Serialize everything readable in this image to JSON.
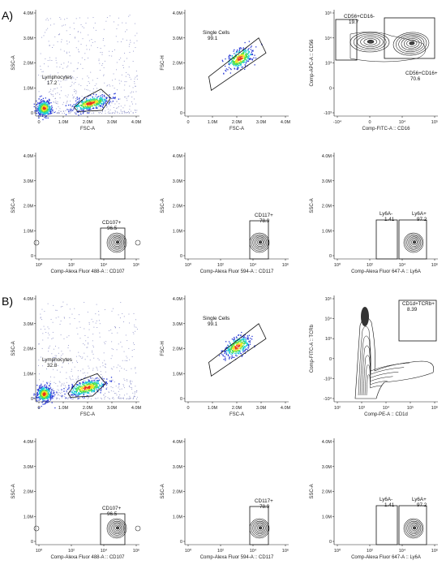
{
  "panel_labels": [
    "A)",
    "B)"
  ],
  "colors": {
    "low": "#2b3cd8",
    "mid": "#18c9d6",
    "mid2": "#4ce04c",
    "high": "#f2e322",
    "peak": "#e8321c",
    "contour": "#111111",
    "scatter_dots": "#8b8fc7"
  },
  "chart_data": [
    {
      "id": "A1",
      "type": "scatter",
      "xlabel": "FSC-A",
      "ylabel": "SSC-A",
      "xscale": "linear",
      "yscale": "linear",
      "xticks": [
        "0",
        "1.0M",
        "2.0M",
        "3.0M",
        "4.0M"
      ],
      "yticks": [
        "0",
        "1.0M",
        "2.0M",
        "3.0M",
        "4.0M"
      ],
      "xlim": [
        0,
        4.3
      ],
      "ylim": [
        0,
        4.3
      ],
      "gates": [
        {
          "name": "Lymphocytes",
          "value": "17.2",
          "x": [
            1.45,
            2.9
          ],
          "y": [
            0.1,
            0.95
          ]
        }
      ],
      "populations": [
        {
          "x": 2.1,
          "y": 0.4,
          "sx": 0.4,
          "sy": 0.12
        },
        {
          "x": 0.2,
          "y": 0.2,
          "sx": 0.15,
          "sy": 0.15
        }
      ],
      "style": "pseudocolor"
    },
    {
      "id": "A2",
      "type": "scatter",
      "xlabel": "FSC-A",
      "ylabel": "FSC-H",
      "xscale": "linear",
      "yscale": "linear",
      "xticks": [
        "0",
        "1.0M",
        "2.0M",
        "3.0M",
        "4.0M"
      ],
      "yticks": [
        "0",
        "1.0M",
        "2.0M",
        "3.0M",
        "4.0M"
      ],
      "xlim": [
        0,
        4.3
      ],
      "ylim": [
        0,
        4.3
      ],
      "gates": [
        {
          "name": "Single Cells",
          "value": "99.1"
        }
      ],
      "populations": [
        {
          "x": 2.1,
          "y": 2.2,
          "sx": 0.3,
          "sy": 0.25
        }
      ],
      "style": "pseudocolor"
    },
    {
      "id": "A3",
      "type": "contour",
      "xlabel": "Comp-FITC-A :: CD16",
      "ylabel": "Comp-APC-A :: CD56",
      "xscale": "log",
      "yscale": "log",
      "xticks": [
        "-10⁴",
        "0",
        "10⁴",
        "10⁵"
      ],
      "yticks": [
        "10⁵",
        "10⁴",
        "10³",
        "0",
        "-10³"
      ],
      "gates": [
        {
          "name": "CD56+CD16-",
          "value": "19.7"
        },
        {
          "name": "CD56+CD16+",
          "value": "70.6"
        }
      ],
      "style": "contour"
    },
    {
      "id": "A4",
      "type": "contour",
      "xlabel": "Comp-Alexa Fluor 488-A :: CD107",
      "ylabel": "SSC-A",
      "xscale": "log",
      "yscale": "linear",
      "xticks": [
        "10⁰",
        "10²",
        "10⁴",
        "10⁶"
      ],
      "yticks": [
        "0",
        "1.0M",
        "2.0M",
        "3.0M",
        "4.0M"
      ],
      "gates": [
        {
          "name": "CD107+",
          "value": "96.5"
        }
      ],
      "style": "contour"
    },
    {
      "id": "A5",
      "type": "contour",
      "xlabel": "Comp-Alexa Fluor 594-A :: CD117",
      "ylabel": "SSC-A",
      "xscale": "log",
      "yscale": "linear",
      "xticks": [
        "10⁰",
        "10²",
        "10⁴",
        "10⁶"
      ],
      "yticks": [
        "0",
        "1.0M",
        "2.0M",
        "3.0M",
        "4.0M"
      ],
      "gates": [
        {
          "name": "CD117+",
          "value": "78.9"
        }
      ],
      "style": "contour"
    },
    {
      "id": "A6",
      "type": "contour",
      "xlabel": "Comp-Alexa Fluor 647-A :: Ly6A",
      "ylabel": "SSC-A",
      "xscale": "log",
      "yscale": "linear",
      "xticks": [
        "10⁰",
        "10²",
        "10⁴",
        "10⁶"
      ],
      "yticks": [
        "0",
        "1.0M",
        "2.0M",
        "3.0M",
        "4.0M"
      ],
      "gates": [
        {
          "name": "Ly6A-",
          "value": "1.41"
        },
        {
          "name": "Ly6A+",
          "value": "97.2"
        }
      ],
      "style": "contour"
    },
    {
      "id": "B1",
      "type": "scatter",
      "xlabel": "FSC-A",
      "ylabel": "SSC-A",
      "xscale": "linear",
      "yscale": "linear",
      "xticks": [
        "0",
        "1.0M",
        "2.0M",
        "3.0M",
        "4.0M"
      ],
      "yticks": [
        "0",
        "1.0M",
        "2.0M",
        "3.0M",
        "4.0M"
      ],
      "xlim": [
        0,
        4.3
      ],
      "ylim": [
        0,
        4.3
      ],
      "gates": [
        {
          "name": "Lymphocytes",
          "value": "32.8"
        }
      ],
      "populations": [
        {
          "x": 1.95,
          "y": 0.45,
          "sx": 0.4,
          "sy": 0.14
        },
        {
          "x": 0.2,
          "y": 0.2,
          "sx": 0.15,
          "sy": 0.15
        }
      ],
      "style": "pseudocolor"
    },
    {
      "id": "B2",
      "type": "scatter",
      "xlabel": "FSC-A",
      "ylabel": "FSC-H",
      "xscale": "linear",
      "yscale": "linear",
      "xticks": [
        "0",
        "1.0M",
        "2.0M",
        "3.0M",
        "4.0M"
      ],
      "yticks": [
        "0",
        "1.0M",
        "2.0M",
        "3.0M",
        "4.0M"
      ],
      "xlim": [
        0,
        4.3
      ],
      "ylim": [
        0,
        4.3
      ],
      "gates": [
        {
          "name": "Single Cells",
          "value": "99.1"
        }
      ],
      "populations": [
        {
          "x": 2.0,
          "y": 2.1,
          "sx": 0.3,
          "sy": 0.25
        }
      ],
      "style": "pseudocolor"
    },
    {
      "id": "B3",
      "type": "contour",
      "xlabel": "Comp-PE-A :: CD1d",
      "ylabel": "Comp-FITC-A :: TCRb",
      "xscale": "log",
      "yscale": "log",
      "xticks": [
        "10²",
        "10³",
        "10⁴",
        "10⁵",
        "10⁶"
      ],
      "yticks": [
        "10⁵",
        "10⁴",
        "10³",
        "0",
        "-10³",
        "-10⁴"
      ],
      "gates": [
        {
          "name": "CD1d+TCRb+",
          "value": "8.39"
        }
      ],
      "style": "contour"
    },
    {
      "id": "B4",
      "type": "contour",
      "xlabel": "Comp-Alexa Fluor 488-A :: CD107",
      "ylabel": "SSC-A",
      "xscale": "log",
      "yscale": "linear",
      "xticks": [
        "10⁰",
        "10²",
        "10⁴",
        "10⁶"
      ],
      "yticks": [
        "0",
        "1.0M",
        "2.0M",
        "3.0M",
        "4.0M"
      ],
      "gates": [
        {
          "name": "CD107+",
          "value": "96.5"
        }
      ],
      "style": "contour"
    },
    {
      "id": "B5",
      "type": "contour",
      "xlabel": "Comp-Alexa Fluor 594-A :: CD117",
      "ylabel": "SSC-A",
      "xscale": "log",
      "yscale": "linear",
      "xticks": [
        "10⁰",
        "10²",
        "10⁴",
        "10⁶"
      ],
      "yticks": [
        "0",
        "1.0M",
        "2.0M",
        "3.0M",
        "4.0M"
      ],
      "gates": [
        {
          "name": "CD117+",
          "value": "78.9"
        }
      ],
      "style": "contour"
    },
    {
      "id": "B6",
      "type": "contour",
      "xlabel": "Comp-Alexa Fluor 647-A :: Ly6A",
      "ylabel": "SSC-A",
      "xscale": "log",
      "yscale": "linear",
      "xticks": [
        "10⁰",
        "10²",
        "10⁴",
        "10⁶"
      ],
      "yticks": [
        "0",
        "1.0M",
        "2.0M",
        "3.0M",
        "4.0M"
      ],
      "gates": [
        {
          "name": "Ly6A-",
          "value": "1.41"
        },
        {
          "name": "Ly6A+",
          "value": "97.2"
        }
      ],
      "style": "contour"
    }
  ]
}
